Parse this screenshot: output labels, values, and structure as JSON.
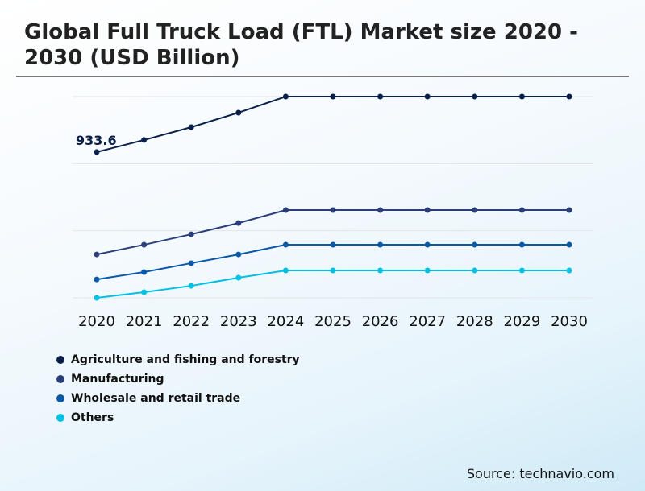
{
  "title": "Global Full Truck Load (FTL) Market size 2020 - 2030 (USD Billion)",
  "source": "Source: technavio.com",
  "chart_data": {
    "type": "line",
    "title": "Global Full Truck Load (FTL) Market size 2020 - 2030 (USD Billion)",
    "xlabel": "",
    "ylabel": "",
    "categories": [
      "2020",
      "2021",
      "2022",
      "2023",
      "2024",
      "2025",
      "2026",
      "2027",
      "2028",
      "2029",
      "2030"
    ],
    "ylim": [
      0,
      1289
    ],
    "grid": true,
    "y_tick_labels_shown": false,
    "legend_position": "bottom-left",
    "annotations": [
      {
        "series": "Agriculture and fishing and forestry",
        "x": "2020",
        "text": "933.6"
      }
    ],
    "series": [
      {
        "name": "Agriculture and fishing and forestry",
        "color": "#0b1f4b",
        "values": [
          933.6,
          1011,
          1093,
          1186,
          1289,
          1289,
          1289,
          1289,
          1289,
          1289,
          1289
        ]
      },
      {
        "name": "Manufacturing",
        "color": "#2a3f7a",
        "values": [
          278,
          340,
          407,
          479,
          562,
          562,
          562,
          562,
          562,
          562,
          562
        ]
      },
      {
        "name": "Wholesale and retail trade",
        "color": "#0a58a8",
        "values": [
          118,
          165,
          222,
          278,
          340,
          340,
          340,
          340,
          340,
          340,
          340
        ]
      },
      {
        "name": "Others",
        "color": "#00c0e4",
        "values": [
          0,
          36,
          77,
          129,
          175,
          175,
          175,
          175,
          175,
          175,
          175
        ]
      }
    ]
  }
}
